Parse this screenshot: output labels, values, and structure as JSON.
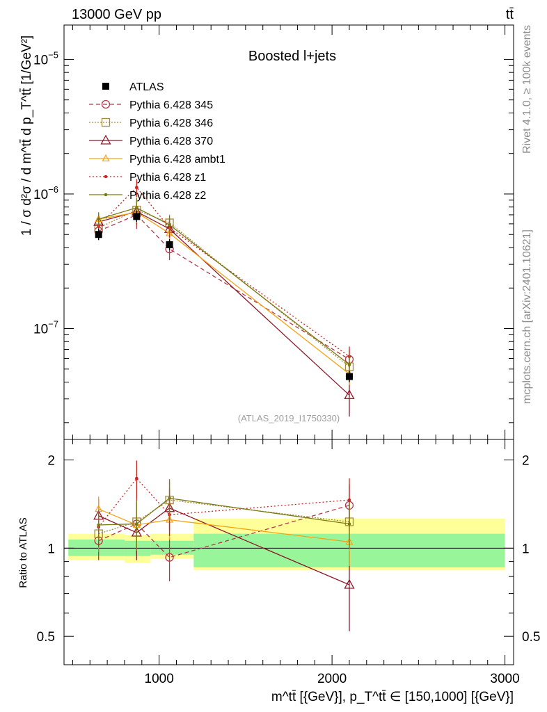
{
  "chart_data": {
    "type": "line",
    "header_left": "13000 GeV pp",
    "header_right": "tt̄",
    "title": "Boosted l+jets",
    "ylabel_top": "1 / σ d²σ / d m^tt̄ d p_T^tt̄ [1/GeV²]",
    "ylabel_bottom": "Ratio to ATLAS",
    "xlabel": "m^tt̄ [{GeV}], p_T^tt̄ ∈ [150,1000] [{GeV}]",
    "watermark": "(ATLAS_2019_I1750330)",
    "side_label_top": "Rivet 4.1.0, ≥ 100k events",
    "side_label_bottom": "mcplots.cern.ch [arXiv:2401.10621]",
    "xlim": [
      450,
      3050
    ],
    "ylim_top": [
      1.5e-08,
      1.8e-05
    ],
    "ylim_bottom": [
      0.4,
      2.35
    ],
    "x_ticks": [
      {
        "v": 1000,
        "label": "1000"
      },
      {
        "v": 2000,
        "label": "2000"
      },
      {
        "v": 3000,
        "label": "3000"
      }
    ],
    "y_ticks_top": [
      {
        "v": 1e-05,
        "mant": "10",
        "exp": "−5"
      },
      {
        "v": 1e-06,
        "mant": "10",
        "exp": "−6"
      },
      {
        "v": 1e-07,
        "mant": "10",
        "exp": "−7"
      }
    ],
    "y_ticks_bottom": [
      {
        "v": 2,
        "label": "2"
      },
      {
        "v": 1,
        "label": "1"
      },
      {
        "v": 0.5,
        "label": "0.5"
      }
    ],
    "x": [
      650,
      870,
      1060,
      2100
    ],
    "data": {
      "name": "ATLAS",
      "y": [
        5e-07,
        6.8e-07,
        4.2e-07,
        4.4e-08
      ],
      "bin_edges": [
        475,
        800,
        950,
        1200,
        3000
      ],
      "band_inner": [
        [
          0.94,
          1.07
        ],
        [
          0.94,
          1.06
        ],
        [
          0.95,
          1.06
        ],
        [
          0.86,
          1.12
        ]
      ],
      "band_outer": [
        [
          0.91,
          1.12
        ],
        [
          0.89,
          1.11
        ],
        [
          0.92,
          1.12
        ],
        [
          0.84,
          1.26
        ]
      ]
    },
    "series": [
      {
        "name": "Pythia 6.428 345",
        "color": "#b2394d",
        "dash": "6,4",
        "marker": "circle",
        "y": [
          5.3e-07,
          7e-07,
          3.9e-07,
          5.9e-08
        ],
        "ratio": [
          1.06,
          1.21,
          0.93,
          1.4
        ],
        "ratio_err": [
          0.15,
          0.26,
          0.16,
          0.25
        ]
      },
      {
        "name": "Pythia 6.428 346",
        "color": "#a38a3c",
        "dash": "2,2",
        "marker": "square",
        "y": [
          5.6e-07,
          7.6e-07,
          6.1e-07,
          5.2e-08
        ],
        "ratio": [
          1.12,
          1.23,
          1.46,
          1.23
        ],
        "ratio_err": [
          0.15,
          0.22,
          0.22,
          0.21
        ]
      },
      {
        "name": "Pythia 6.428 370",
        "color": "#8b1a2b",
        "dash": "",
        "marker": "triangle",
        "y": [
          6.2e-07,
          7.4e-07,
          5.5e-07,
          3.2e-08
        ],
        "ratio": [
          1.29,
          1.13,
          1.37,
          0.75
        ],
        "ratio_err": [
          0.18,
          0.22,
          0.22,
          0.23
        ]
      },
      {
        "name": "Pythia 6.428 ambt1",
        "color": "#f5a315",
        "dash": "",
        "marker": "triangle-small",
        "y": [
          6.5e-07,
          7.3e-07,
          5.1e-07,
          4.6e-08
        ],
        "ratio": [
          1.36,
          1.2,
          1.25,
          1.05
        ],
        "ratio_err": [
          0.14,
          0.2,
          0.18,
          0.18
        ]
      },
      {
        "name": "Pythia 6.428 z1",
        "color": "#cc2222",
        "dash": "2,3",
        "marker": "dot",
        "y": [
          5.8e-07,
          1.12e-06,
          5.6e-07,
          6.2e-08
        ],
        "ratio": [
          1.18,
          1.73,
          1.3,
          1.46
        ],
        "ratio_err": [
          0.17,
          0.26,
          0.2,
          0.27
        ]
      },
      {
        "name": "Pythia 6.428 z2",
        "color": "#7a7a14",
        "dash": "",
        "marker": "dot",
        "y": [
          6.5e-07,
          7.9e-07,
          5.9e-07,
          5.4e-08
        ],
        "ratio": [
          1.2,
          1.21,
          1.48,
          1.21
        ],
        "ratio_err": [
          0.15,
          0.23,
          0.24,
          0.22
        ]
      }
    ]
  }
}
